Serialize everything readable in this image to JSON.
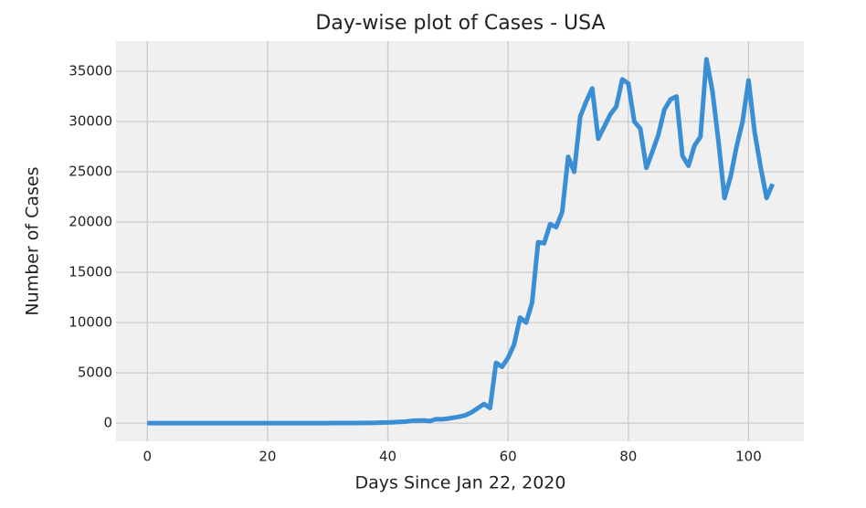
{
  "chart_data": {
    "type": "line",
    "title": "Day-wise plot of Cases - USA",
    "x_label": "Days Since Jan 22, 2020",
    "y_label": "Number of Cases",
    "x": [
      0,
      1,
      2,
      3,
      4,
      5,
      6,
      7,
      8,
      9,
      10,
      11,
      12,
      13,
      14,
      15,
      16,
      17,
      18,
      19,
      20,
      21,
      22,
      23,
      24,
      25,
      26,
      27,
      28,
      29,
      30,
      31,
      32,
      33,
      34,
      35,
      36,
      37,
      38,
      39,
      40,
      41,
      42,
      43,
      44,
      45,
      46,
      47,
      48,
      49,
      50,
      51,
      52,
      53,
      54,
      55,
      56,
      57,
      58,
      59,
      60,
      61,
      62,
      63,
      64,
      65,
      66,
      67,
      68,
      69,
      70,
      71,
      72,
      73,
      74,
      75,
      76,
      77,
      78,
      79,
      80,
      81,
      82,
      83,
      84,
      85,
      86,
      87,
      88,
      89,
      90,
      91,
      92,
      93,
      94,
      95,
      96,
      97,
      98,
      99,
      100,
      101,
      102,
      103,
      104
    ],
    "series": [
      {
        "name": "Cases",
        "color": "#3a8fd4",
        "values": [
          1,
          0,
          0,
          0,
          0,
          2,
          0,
          0,
          0,
          0,
          1,
          0,
          0,
          0,
          0,
          0,
          0,
          0,
          0,
          0,
          0,
          0,
          0,
          0,
          0,
          0,
          0,
          0,
          0,
          0,
          0,
          3,
          4,
          10,
          5,
          12,
          18,
          22,
          28,
          50,
          60,
          90,
          120,
          150,
          230,
          250,
          270,
          200,
          400,
          380,
          450,
          550,
          650,
          800,
          1100,
          1500,
          1900,
          1500,
          6000,
          5600,
          6500,
          7800,
          10500,
          10000,
          12000,
          18000,
          17900,
          19800,
          19500,
          21000,
          26500,
          25000,
          30500,
          32000,
          33300,
          28300,
          29500,
          30700,
          31500,
          34200,
          33800,
          30000,
          29300,
          25400,
          27000,
          28700,
          31200,
          32200,
          32500,
          26600,
          25600,
          27600,
          28500,
          36200,
          33000,
          28000,
          22400,
          24500,
          27500,
          30000,
          34100,
          29000,
          25500,
          22400,
          23800
        ]
      }
    ],
    "xlim": [
      -5.2,
      109.2
    ],
    "ylim": [
      -1810,
      38010
    ],
    "xticks": [
      0,
      20,
      40,
      60,
      80,
      100
    ],
    "yticks": [
      0,
      5000,
      10000,
      15000,
      20000,
      25000,
      30000,
      35000
    ],
    "grid": true
  }
}
